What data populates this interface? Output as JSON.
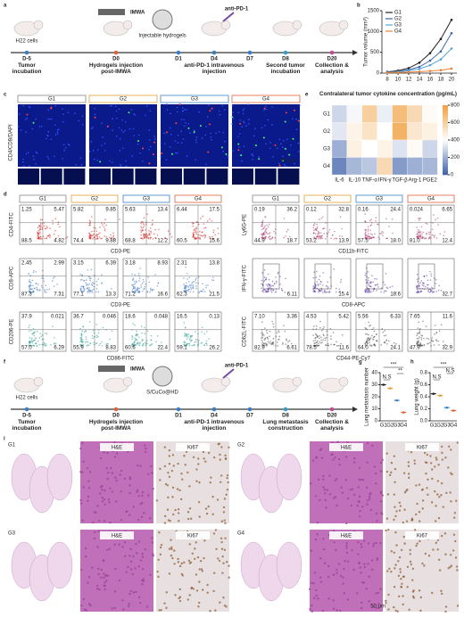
{
  "panel_labels": [
    "a",
    "b",
    "c",
    "d",
    "e",
    "f",
    "g",
    "h",
    "i"
  ],
  "panel_a": {
    "cell_label": "H22 cells",
    "device_label": "IMWA",
    "material_label": "Injectable hydrogels",
    "drug_label": "anti-PD-1",
    "days": [
      "D-5",
      "D0",
      "D1",
      "D4",
      "D7",
      "D8",
      "D20"
    ],
    "captions": [
      "Tumor incubation",
      "Hydrogels injection post-IMWA",
      "anti-PD-1 intravenous injection",
      "Second tumor incubation",
      "Collection & analysis"
    ]
  },
  "panel_c": {
    "groups": [
      "G1",
      "G2",
      "G3",
      "G4"
    ],
    "stain": "CD4/CD8/DAPI",
    "scale": "50 μm"
  },
  "panel_d": {
    "left_groups": [
      "G1",
      "G2",
      "G3",
      "G4"
    ],
    "right_groups": [
      "G1",
      "G2",
      "G3",
      "G4"
    ],
    "left_rows": [
      {
        "y_label": "CD4-FITC",
        "x_label": "CD3-PE",
        "values": [
          [
            "1.25",
            "5.47",
            "88.5",
            "4.82"
          ],
          [
            "5.82",
            "9.85",
            "74.4",
            "9.88"
          ],
          [
            "5.63",
            "13.4",
            "68.8",
            "12.2"
          ],
          [
            "6.44",
            "17.5",
            "60.5",
            "15.6"
          ]
        ]
      },
      {
        "y_label": "CD8-APC",
        "x_label": "CD3-PE",
        "values": [
          [
            "2.45",
            "2.99",
            "87.3",
            "7.31"
          ],
          [
            "3.15",
            "6.39",
            "77.1",
            "13.3"
          ],
          [
            "3.18",
            "8.93",
            "71.2",
            "16.6"
          ],
          [
            "2.31",
            "13.8",
            "62.3",
            "21.5"
          ]
        ]
      },
      {
        "y_label": "CD206-PE",
        "x_label": "CD86-FITC",
        "values": [
          [
            "37.9",
            "0.021",
            "57.0",
            "6.29"
          ],
          [
            "36.7",
            "0.046",
            "55.9",
            "8.83"
          ],
          [
            "18.6",
            "0.048",
            "60.6",
            "22.4"
          ],
          [
            "16.5",
            "0.13",
            "59.1",
            "26.2"
          ]
        ]
      }
    ],
    "right_rows": [
      {
        "y_label": "Ly6G-PE",
        "x_label": "CD11b-FITC",
        "values": [
          [
            "0.19",
            "36.2",
            "44.9",
            "18.7"
          ],
          [
            "0.12",
            "32.8",
            "53.2",
            "13.9"
          ],
          [
            "0.16",
            "24.4",
            "57.5",
            "18.0"
          ],
          [
            "0.024",
            "6.65",
            "81.0",
            "12.4"
          ]
        ]
      },
      {
        "y_label": "IFN-γ-FITC",
        "x_label": "CD8-APC",
        "values": [
          "6.11",
          "15.4",
          "18.6",
          "32.7"
        ]
      },
      {
        "y_label": "CD62L-FITC",
        "x_label": "CD44-PE-Cy7",
        "values": [
          [
            "7.10",
            "3.36",
            "82.9",
            "6.61"
          ],
          [
            "4.53",
            "5.42",
            "78.5",
            "11.6"
          ],
          [
            "5.56",
            "6.33",
            "64.0",
            "24.1"
          ],
          [
            "7.65",
            "11.6",
            "47.9",
            "32.9"
          ]
        ]
      }
    ]
  },
  "panel_f": {
    "cell_label": "H22 cells",
    "device_label": "IMWA",
    "material_label": "S/CuCo@HD",
    "drug_label": "anti-PD-1",
    "days": [
      "D-5",
      "D0",
      "D1",
      "D4",
      "D7",
      "D8",
      "D20"
    ],
    "captions": [
      "Tumor incubation",
      "Hydrogels injection post-IMWA",
      "anti-PD-1 intravenous injection",
      "Lung metastasis construction",
      "Collection & analysis"
    ]
  },
  "panel_i": {
    "blocks": [
      {
        "group": "G1",
        "stain_1": "H&E",
        "stain_2": "Ki67"
      },
      {
        "group": "G2",
        "stain_1": "H&E",
        "stain_2": "Ki67"
      },
      {
        "group": "G3",
        "stain_1": "H&E",
        "stain_2": "Ki67"
      },
      {
        "group": "G4",
        "stain_1": "H&E",
        "stain_2": "Ki67"
      }
    ],
    "scale": "50 μm"
  },
  "chart_data": [
    {
      "type": "line",
      "y_label": "Tumor volume (mm³)",
      "x": [
        8,
        10,
        12,
        14,
        16,
        18,
        20
      ],
      "xlim": [
        7,
        21
      ],
      "xticks": [
        8,
        10,
        12,
        14,
        16,
        18,
        20
      ],
      "ylim": [
        0,
        1500
      ],
      "yticks": [
        0,
        500,
        1000,
        1500
      ],
      "series": [
        {
          "name": "G1",
          "color": "#222222",
          "values": [
            30,
            60,
            120,
            250,
            480,
            820,
            1280
          ]
        },
        {
          "name": "G2",
          "color": "#3a66b0",
          "values": [
            20,
            40,
            80,
            150,
            300,
            520,
            960
          ]
        },
        {
          "name": "G3",
          "color": "#5aa5d8",
          "values": [
            15,
            30,
            60,
            100,
            190,
            330,
            590
          ]
        },
        {
          "name": "G4",
          "color": "#e6843a",
          "values": [
            10,
            15,
            25,
            35,
            50,
            70,
            110
          ]
        }
      ]
    },
    {
      "type": "heatmap",
      "title": "Contralateral tumor cytokine concentration (pg/mL)",
      "rows": [
        "G1",
        "G2",
        "G3",
        "G4"
      ],
      "categories": [
        "IL-6",
        "IL-10",
        "TNF-α",
        "IFN-γ",
        "TGF-β",
        "Arg-1",
        "PGE2"
      ],
      "values": [
        [
          300,
          380,
          600,
          360,
          680,
          560,
          420
        ],
        [
          340,
          450,
          520,
          400,
          720,
          500,
          460
        ],
        [
          200,
          460,
          400,
          450,
          330,
          420,
          300
        ],
        [
          100,
          220,
          260,
          560,
          150,
          200,
          220
        ]
      ],
      "zlim": [
        0,
        800
      ],
      "zticks": [
        0,
        200,
        400,
        600,
        800
      ]
    },
    {
      "type": "strip",
      "y_label": "Lung metastasis number",
      "categories": [
        "G1",
        "G2",
        "G3",
        "G4"
      ],
      "values": [
        30,
        27,
        17,
        7
      ],
      "colors": [
        "#222222",
        "#e0a030",
        "#3a7fc4",
        "#e0603a"
      ],
      "ylim": [
        0,
        40
      ],
      "yticks": [
        0,
        10,
        20,
        30,
        40
      ],
      "annotations": [
        "N.S",
        "***",
        "**"
      ]
    },
    {
      "type": "strip",
      "y_label": "Lung weight (g)",
      "categories": [
        "G1",
        "G2",
        "G3",
        "G4"
      ],
      "values": [
        0.45,
        0.42,
        0.22,
        0.17
      ],
      "colors": [
        "#222222",
        "#e0a030",
        "#3a7fc4",
        "#e0603a"
      ],
      "ylim": [
        0,
        0.8
      ],
      "yticks": [
        {
          "value": 0,
          "label": "0.0"
        },
        0.2,
        0.4,
        0.6,
        0.8
      ],
      "annotations": [
        "N.S",
        "***",
        "N.S"
      ]
    }
  ]
}
